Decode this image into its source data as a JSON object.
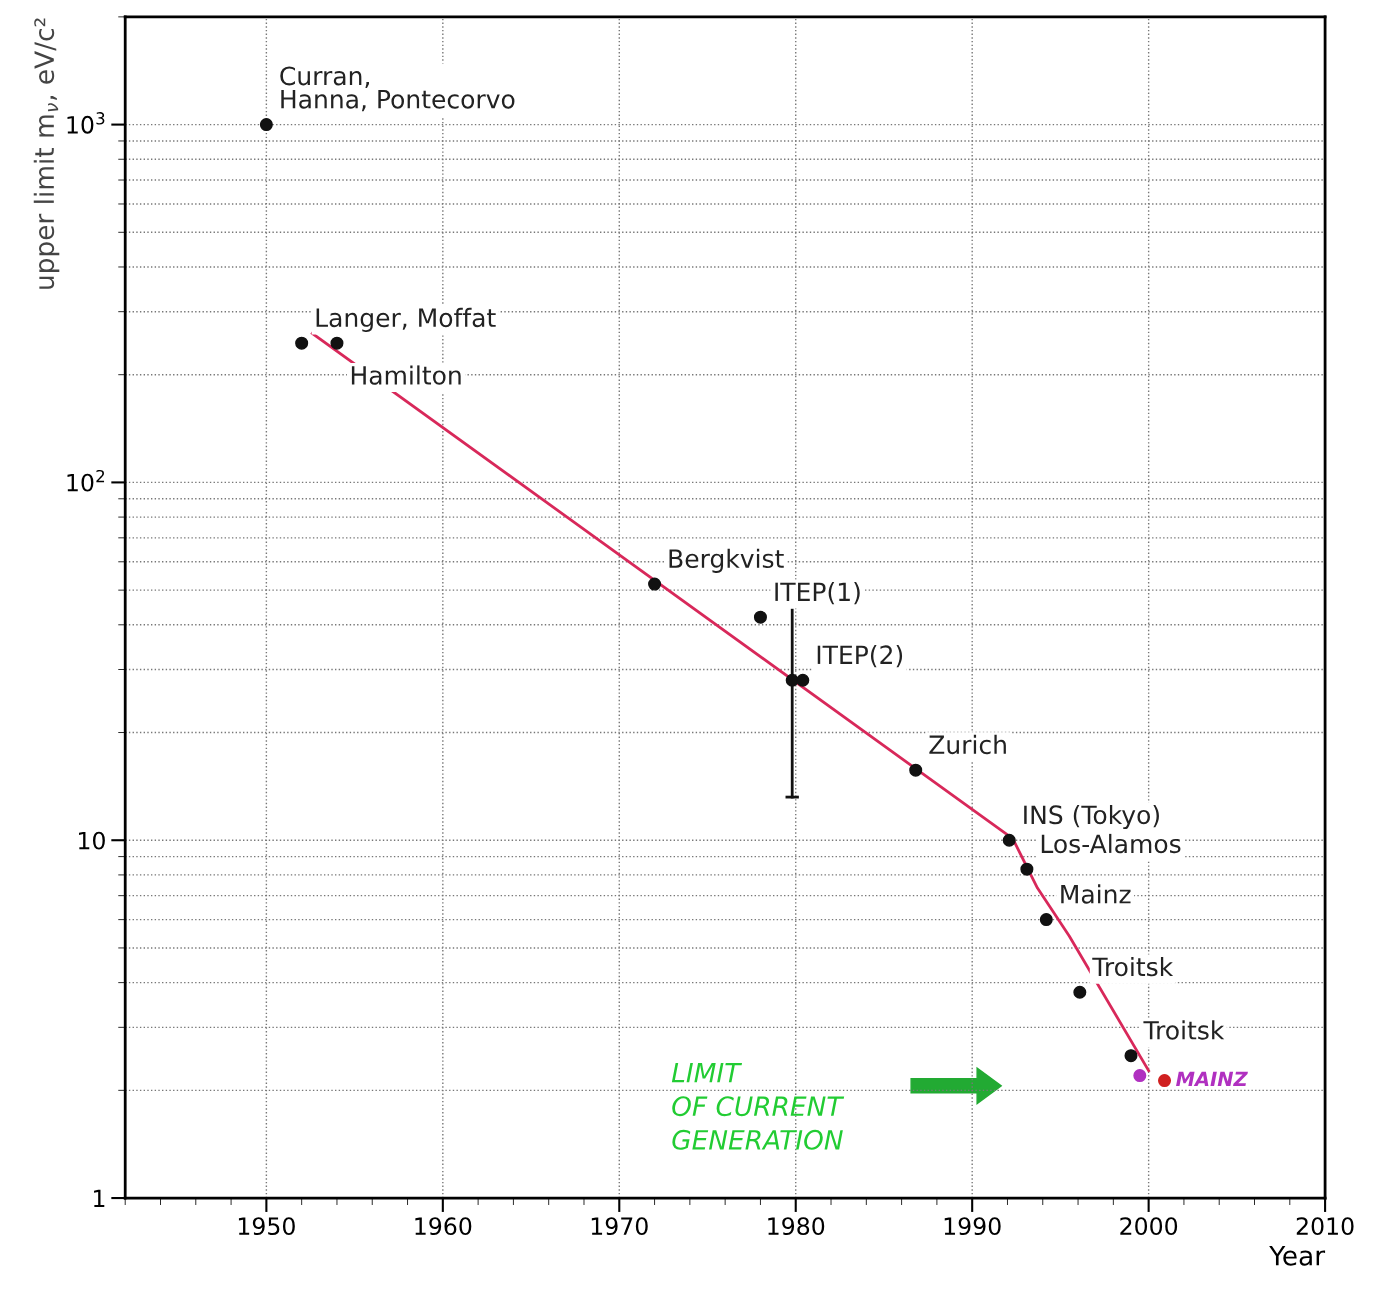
{
  "chart_data": {
    "type": "scatter",
    "xlabel": "Year",
    "ylabel": "upper limit m$_{ν}$, eV/c²",
    "log": "y",
    "grid": true,
    "xlim": [
      1942,
      2010
    ],
    "ylim": [
      1,
      2000
    ],
    "xticks": [
      1950,
      1960,
      1970,
      1980,
      1990,
      2000,
      2010
    ],
    "yticks": [
      {
        "value": 1,
        "label": "1"
      },
      {
        "value": 10,
        "label": "10"
      },
      {
        "value": 100,
        "label": "10$^{2}$"
      },
      {
        "value": 1000,
        "label": "10$^{3}$"
      }
    ],
    "series": [
      {
        "type": "line",
        "color": "#d8285a",
        "x": [
          1952.6,
          1992.3,
          1993.7,
          1994.6,
          1995.5,
          2000.0
        ],
        "values": [
          261,
          10.1,
          7.35,
          6.3,
          5.4,
          2.27
        ]
      },
      {
        "marker": "circle",
        "color": "#111111",
        "x": [
          1950,
          1952,
          1954,
          1972,
          1978,
          1979.8,
          1980.4,
          1986.8,
          1992.1,
          1993.1,
          1994.2,
          1996.1,
          1999
        ],
        "values": [
          1000,
          245,
          245,
          52,
          42,
          28,
          28,
          15.7,
          10,
          8.3,
          6.0,
          3.76,
          2.5
        ],
        "errors": [
          null,
          null,
          null,
          null,
          null,
          [
            13.2,
            44
          ],
          null,
          null,
          null,
          null,
          null,
          null,
          null
        ]
      },
      {
        "type": "scatter",
        "marker": "circle",
        "name": "MAINZ",
        "color": "#b030c0",
        "colors": [
          "#b030c0",
          "#d02020"
        ],
        "x": [
          1999.5,
          2000.9
        ],
        "values": [
          2.2,
          2.13
        ]
      }
    ],
    "annotations": [
      {
        "text": "Curran,\nHanna, Pontecorvo",
        "x": 1950,
        "y": 1000
      },
      {
        "text": "Langer, Moffat",
        "x": 1952,
        "y": 245
      },
      {
        "text": "Hamilton",
        "x": 1954,
        "y": 245
      },
      {
        "text": "Bergkvist",
        "x": 1972,
        "y": 52
      },
      {
        "text": "ITEP(1)",
        "x": 1978,
        "y": 42
      },
      {
        "text": "ITEP(2)",
        "x": 1980.4,
        "y": 28
      },
      {
        "text": "Zurich",
        "x": 1986.8,
        "y": 15.7
      },
      {
        "text": "INS (Tokyo)",
        "x": 1992.1,
        "y": 10
      },
      {
        "text": "Los-Alamos",
        "x": 1993.1,
        "y": 8.3
      },
      {
        "text": "Mainz",
        "x": 1994.2,
        "y": 6.0
      },
      {
        "text": "Troitsk",
        "x": 1996.1,
        "y": 3.76
      },
      {
        "text": "Troitsk",
        "x": 1999,
        "y": 2.5
      },
      "LIMIT\nOF CURRENT\nGENERATION"
    ]
  }
}
